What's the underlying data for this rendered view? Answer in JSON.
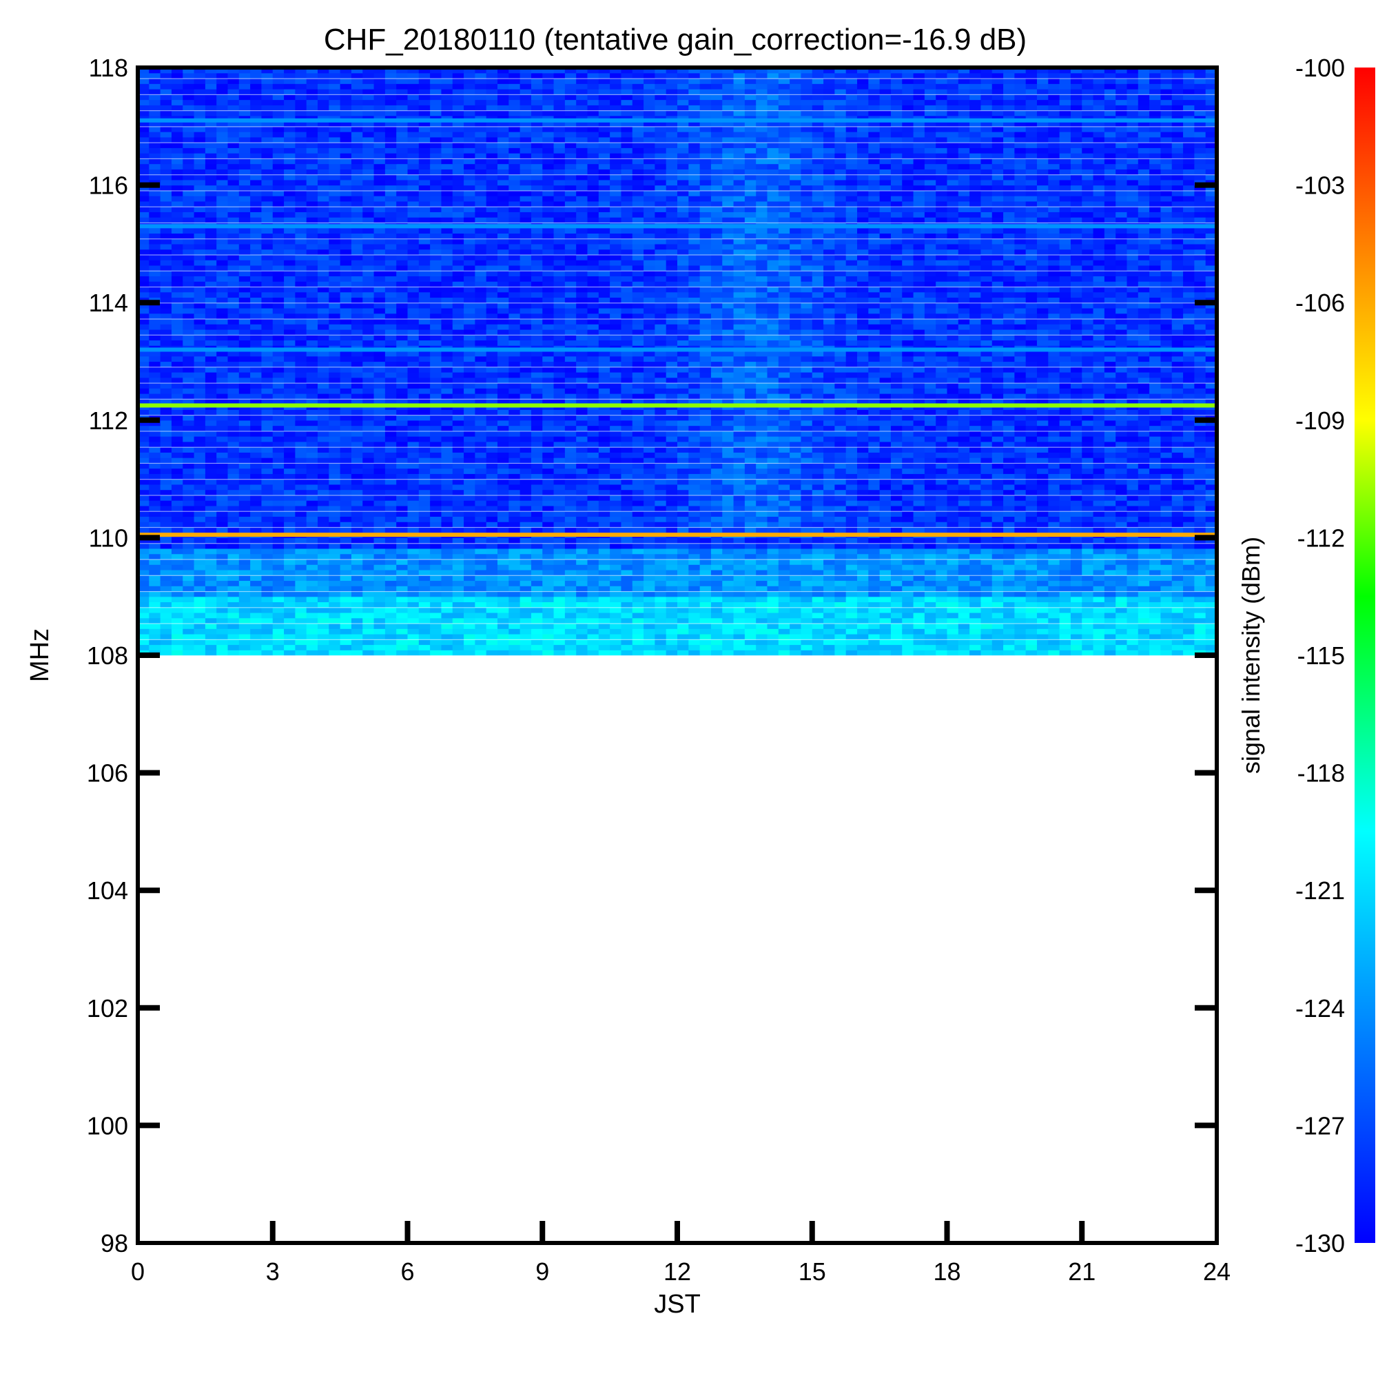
{
  "chart_data": {
    "type": "heatmap",
    "title": "CHF_20180110 (tentative gain_correction=-16.9 dB)",
    "xlabel": "JST",
    "ylabel": "MHz",
    "xlim": [
      0,
      24
    ],
    "ylim": [
      98,
      118
    ],
    "x_ticks": [
      0,
      3,
      6,
      9,
      12,
      15,
      18,
      21,
      24
    ],
    "y_ticks": [
      98,
      100,
      102,
      104,
      106,
      108,
      110,
      112,
      114,
      116,
      118
    ],
    "data_freq_range": [
      108,
      118
    ],
    "data_time_range": [
      0,
      24
    ],
    "colorbar": {
      "label": "signal intensity (dBm)",
      "range": [
        -130,
        -100
      ],
      "ticks": [
        -100,
        -103,
        -106,
        -109,
        -112,
        -115,
        -118,
        -121,
        -124,
        -127,
        -130
      ],
      "colormap": "jet"
    },
    "background_level_dbm": [
      {
        "freq_range": [
          108.0,
          109.0
        ],
        "level": -121
      },
      {
        "freq_range": [
          109.0,
          109.8
        ],
        "level": -124
      },
      {
        "freq_range": [
          109.8,
          112.0
        ],
        "level": -128
      },
      {
        "freq_range": [
          112.0,
          118.0
        ],
        "level": -128
      }
    ],
    "strong_lines": [
      {
        "freq": 110.05,
        "level": -106,
        "description": "continuous band"
      },
      {
        "freq": 112.25,
        "level": -111,
        "description": "continuous band"
      },
      {
        "freq": 113.2,
        "level": -124,
        "description": "continuous band"
      },
      {
        "freq": 115.3,
        "level": -124,
        "description": "continuous band"
      },
      {
        "freq": 117.1,
        "level": -124,
        "description": "continuous band"
      }
    ]
  }
}
